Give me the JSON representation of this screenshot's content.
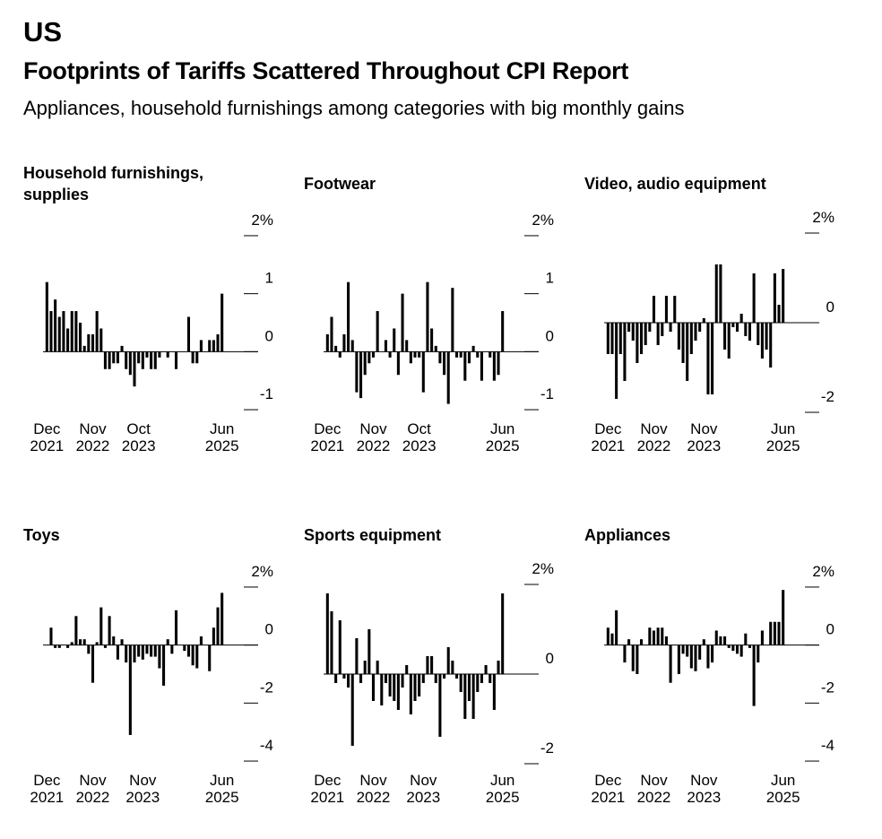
{
  "header": {
    "kicker": "US",
    "title": "Footprints of Tariffs Scattered Throughout CPI Report",
    "subtitle": "Appliances, household furnishings among categories with big monthly gains"
  },
  "chart_data": [
    {
      "type": "bar",
      "title": "Household furnishings, supplies",
      "color": "#000000",
      "categories": [
        "Dec 2021",
        null,
        null,
        null,
        null,
        null,
        null,
        null,
        null,
        null,
        null,
        "Nov 2022",
        null,
        null,
        null,
        null,
        null,
        null,
        null,
        null,
        null,
        null,
        "Oct 2023",
        null,
        null,
        null,
        null,
        null,
        null,
        null,
        null,
        null,
        null,
        null,
        null,
        null,
        null,
        null,
        null,
        null,
        null,
        null,
        "Jun 2025"
      ],
      "values": [
        1.2,
        0.7,
        0.9,
        0.6,
        0.7,
        0.4,
        0.7,
        0.7,
        0.5,
        0.1,
        0.3,
        0.3,
        0.7,
        0.4,
        -0.3,
        -0.3,
        -0.2,
        -0.2,
        0.1,
        -0.3,
        -0.4,
        -0.6,
        -0.2,
        -0.3,
        -0.1,
        -0.3,
        -0.3,
        -0.1,
        0,
        -0.1,
        0,
        -0.3,
        0,
        0,
        0.6,
        -0.2,
        -0.2,
        0.2,
        0,
        0.2,
        0.2,
        0.3,
        1.0
      ],
      "ylim": [
        -1.2,
        2.2
      ],
      "yticks": [
        {
          "value": 2,
          "label": "2%"
        },
        1,
        0,
        -1
      ]
    },
    {
      "type": "bar",
      "title": "Footwear",
      "color": "#000000",
      "categories": [
        "Dec 2021",
        null,
        null,
        null,
        null,
        null,
        null,
        null,
        null,
        null,
        null,
        "Nov 2022",
        null,
        null,
        null,
        null,
        null,
        null,
        null,
        null,
        null,
        null,
        "Oct 2023",
        null,
        null,
        null,
        null,
        null,
        null,
        null,
        null,
        null,
        null,
        null,
        null,
        null,
        null,
        null,
        null,
        null,
        null,
        null,
        "Jun 2025"
      ],
      "values": [
        0.3,
        0.6,
        0.1,
        -0.1,
        0.3,
        1.2,
        0.2,
        -0.7,
        -0.8,
        -0.4,
        -0.2,
        -0.1,
        0.7,
        0,
        0.2,
        -0.1,
        0.4,
        -0.4,
        1.0,
        0.2,
        -0.2,
        -0.1,
        -0.1,
        -0.7,
        1.2,
        0.4,
        0.1,
        -0.2,
        -0.4,
        -0.9,
        1.1,
        -0.1,
        -0.1,
        -0.5,
        -0.2,
        0.1,
        -0.1,
        -0.5,
        0,
        -0.1,
        -0.5,
        -0.4,
        0.7
      ],
      "ylim": [
        -1.2,
        2.2
      ],
      "yticks": [
        {
          "value": 2,
          "label": "2%"
        },
        1,
        0,
        -1
      ]
    },
    {
      "type": "bar",
      "title": "Video, audio equipment",
      "color": "#000000",
      "categories": [
        "Dec 2021",
        null,
        null,
        null,
        null,
        null,
        null,
        null,
        null,
        null,
        null,
        "Nov 2022",
        null,
        null,
        null,
        null,
        null,
        null,
        null,
        null,
        null,
        null,
        null,
        "Nov 2023",
        null,
        null,
        null,
        null,
        null,
        null,
        null,
        null,
        null,
        null,
        null,
        null,
        null,
        null,
        null,
        null,
        null,
        null,
        "Jun 2025"
      ],
      "values": [
        -0.7,
        -0.7,
        -1.7,
        -0.7,
        -1.3,
        -0.2,
        -0.4,
        -0.9,
        -0.7,
        -0.5,
        -0.2,
        0.6,
        -0.5,
        -0.3,
        0.6,
        -0.2,
        0.6,
        -0.6,
        -0.9,
        -1.3,
        -0.7,
        -0.4,
        -0.2,
        0.1,
        -1.6,
        -1.6,
        1.3,
        1.3,
        -0.6,
        -0.8,
        -0.1,
        -0.2,
        0.2,
        -0.3,
        -0.4,
        1.1,
        -0.5,
        -0.8,
        -0.6,
        -1.0,
        1.1,
        0.4,
        1.2
      ],
      "ylim": [
        -2.2,
        2.2
      ],
      "yticks": [
        {
          "value": 2,
          "label": "2%"
        },
        0,
        -2
      ]
    },
    {
      "type": "bar",
      "title": "Toys",
      "color": "#000000",
      "categories": [
        "Dec 2021",
        null,
        null,
        null,
        null,
        null,
        null,
        null,
        null,
        null,
        null,
        "Nov 2022",
        null,
        null,
        null,
        null,
        null,
        null,
        null,
        null,
        null,
        null,
        null,
        "Nov 2023",
        null,
        null,
        null,
        null,
        null,
        null,
        null,
        null,
        null,
        null,
        null,
        null,
        null,
        null,
        null,
        null,
        null,
        null,
        "Jun 2025"
      ],
      "values": [
        0,
        0.6,
        -0.1,
        -0.1,
        0,
        -0.1,
        0.1,
        1.0,
        0.2,
        0.2,
        -0.3,
        -1.3,
        0.1,
        1.3,
        -0.1,
        1.0,
        0.3,
        -0.5,
        0.2,
        -0.6,
        -3.1,
        -0.6,
        -0.4,
        -0.5,
        -0.3,
        -0.4,
        -0.4,
        -0.8,
        -1.4,
        0.2,
        -0.3,
        1.2,
        0,
        -0.2,
        -0.4,
        -0.7,
        -0.8,
        0.3,
        0,
        -0.9,
        0.6,
        1.3,
        1.8
      ],
      "ylim": [
        -4.4,
        2.4
      ],
      "yticks": [
        {
          "value": 2,
          "label": "2%"
        },
        0,
        -2,
        -4
      ]
    },
    {
      "type": "bar",
      "title": "Sports equipment",
      "color": "#000000",
      "categories": [
        "Dec 2021",
        null,
        null,
        null,
        null,
        null,
        null,
        null,
        null,
        null,
        null,
        "Nov 2022",
        null,
        null,
        null,
        null,
        null,
        null,
        null,
        null,
        null,
        null,
        null,
        "Nov 2023",
        null,
        null,
        null,
        null,
        null,
        null,
        null,
        null,
        null,
        null,
        null,
        null,
        null,
        null,
        null,
        null,
        null,
        null,
        "Jun 2025"
      ],
      "values": [
        1.8,
        1.4,
        -0.2,
        1.2,
        -0.1,
        -0.3,
        -1.6,
        0.8,
        -0.2,
        0.3,
        1.0,
        -0.6,
        0.3,
        -0.7,
        -0.2,
        -0.5,
        -0.6,
        -0.8,
        -0.3,
        0.2,
        -0.9,
        -0.6,
        -0.5,
        -0.2,
        0.4,
        0.4,
        -0.2,
        -1.4,
        -0.1,
        0.6,
        0.3,
        -0.1,
        -0.4,
        -1.0,
        -0.6,
        -1.0,
        -0.4,
        -0.2,
        0.2,
        -0.2,
        -0.8,
        0.3,
        1.8
      ],
      "ylim": [
        -2.2,
        2.2
      ],
      "yticks": [
        {
          "value": 2,
          "label": "2%"
        },
        0,
        -2
      ]
    },
    {
      "type": "bar",
      "title": "Appliances",
      "color": "#000000",
      "categories": [
        "Dec 2021",
        null,
        null,
        null,
        null,
        null,
        null,
        null,
        null,
        null,
        null,
        "Nov 2022",
        null,
        null,
        null,
        null,
        null,
        null,
        null,
        null,
        null,
        null,
        null,
        "Nov 2023",
        null,
        null,
        null,
        null,
        null,
        null,
        null,
        null,
        null,
        null,
        null,
        null,
        null,
        null,
        null,
        null,
        null,
        null,
        "Jun 2025"
      ],
      "values": [
        0.6,
        0.4,
        1.2,
        0,
        -0.6,
        0.2,
        -0.9,
        -1.0,
        0.2,
        0,
        0.6,
        0.5,
        0.6,
        0.6,
        0.3,
        -1.3,
        0,
        -1.0,
        -0.3,
        -0.4,
        -0.8,
        -0.9,
        -0.5,
        0.2,
        -0.8,
        -0.6,
        0.5,
        0.3,
        0.3,
        -0.1,
        -0.2,
        -0.3,
        -0.4,
        0.4,
        -0.1,
        -2.1,
        -0.6,
        0.5,
        0,
        0.8,
        0.8,
        0.8,
        1.9
      ],
      "ylim": [
        -4.4,
        2.4
      ],
      "yticks": [
        {
          "value": 2,
          "label": "2%"
        },
        0,
        -2,
        -4
      ]
    }
  ]
}
